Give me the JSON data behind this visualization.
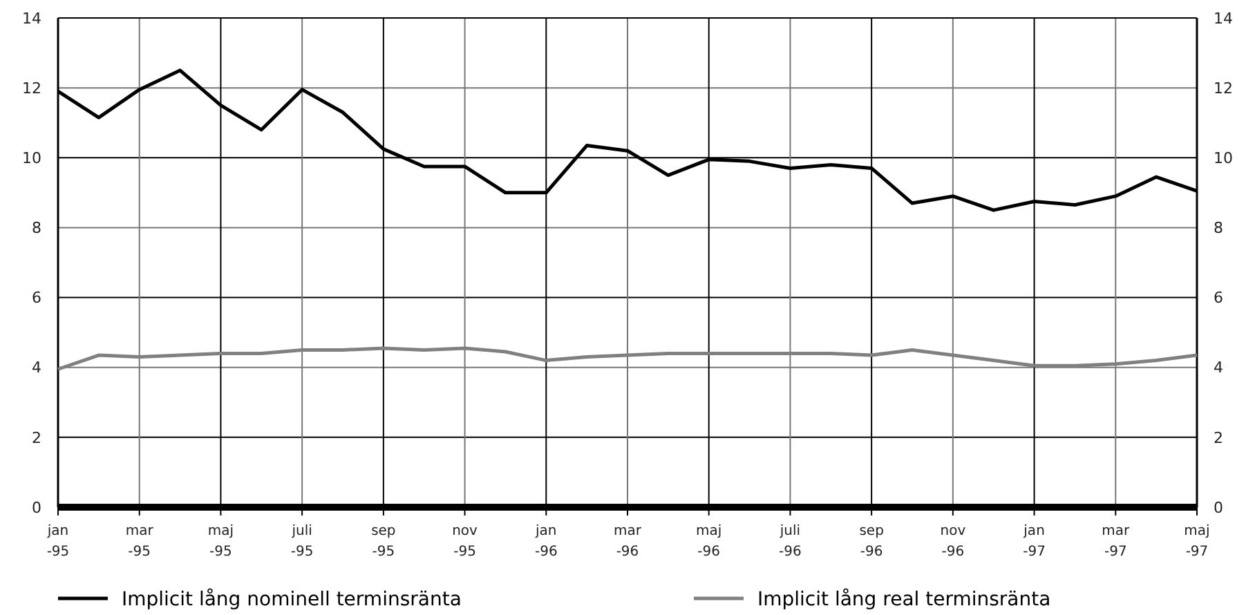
{
  "chart_data": {
    "type": "line",
    "categories": [
      "jan\n-95",
      null,
      "mar\n-95",
      null,
      "maj\n-95",
      null,
      "juli\n-95",
      null,
      "sep\n-95",
      null,
      "nov\n-95",
      null,
      "jan\n-96",
      null,
      "mar\n-96",
      null,
      "maj\n-96",
      null,
      "juli\n-96",
      null,
      "sep\n-96",
      null,
      "nov\n-96",
      null,
      "jan\n-97",
      null,
      "mar\n-97",
      null,
      "maj\n-97"
    ],
    "series": [
      {
        "name": "Implicit lång nominell terminsränta",
        "color": "#000000",
        "values": [
          11.9,
          11.15,
          11.95,
          12.5,
          11.5,
          10.8,
          11.95,
          11.3,
          10.25,
          9.75,
          9.75,
          9.0,
          9.0,
          10.35,
          10.2,
          9.5,
          9.95,
          9.9,
          9.7,
          9.8,
          9.7,
          8.7,
          8.9,
          8.5,
          8.75,
          8.65,
          8.9,
          9.45,
          9.05
        ]
      },
      {
        "name": "Implicit lång real terminsränta",
        "color": "#808080",
        "values": [
          3.95,
          4.35,
          4.3,
          4.35,
          4.4,
          4.4,
          4.5,
          4.5,
          4.55,
          4.5,
          4.55,
          4.45,
          4.2,
          4.3,
          4.35,
          4.4,
          4.4,
          4.4,
          4.4,
          4.4,
          4.35,
          4.5,
          4.35,
          4.2,
          4.05,
          4.05,
          4.1,
          4.2,
          4.35
        ]
      }
    ],
    "ylim": [
      0,
      14
    ],
    "yticks": [
      0,
      2,
      4,
      6,
      8,
      10,
      12,
      14
    ],
    "y2lim": [
      0,
      14
    ],
    "y2ticks": [
      0,
      2,
      4,
      6,
      8,
      10,
      12,
      14
    ],
    "grid": true,
    "legend": "bottom",
    "marker": "none",
    "line_style": "solid"
  }
}
